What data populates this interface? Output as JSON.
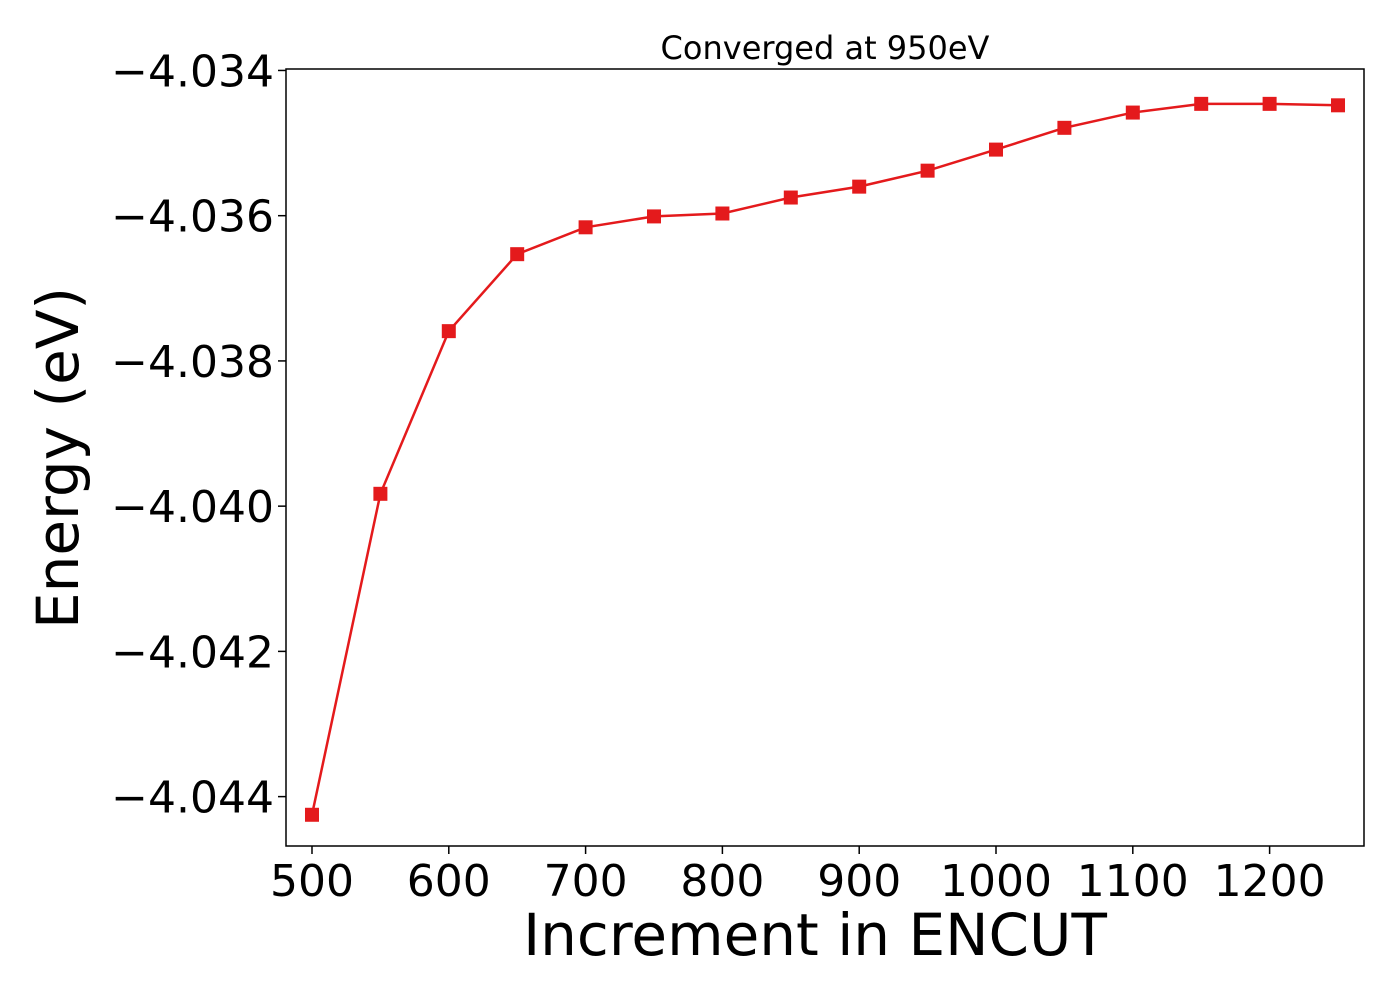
{
  "chart_data": {
    "type": "line",
    "title": "Converged at 950eV",
    "xlabel": "Increment in ENCUT",
    "ylabel": "Energy (eV)",
    "xlim": [
      481,
      1269
    ],
    "ylim": [
      -4.04468,
      -4.03398
    ],
    "xticks": [
      500,
      600,
      700,
      800,
      900,
      1000,
      1100,
      1200
    ],
    "xtick_labels": [
      "500",
      "600",
      "700",
      "800",
      "900",
      "1000",
      "1100",
      "1200"
    ],
    "yticks": [
      -4.034,
      -4.036,
      -4.038,
      -4.04,
      -4.042,
      -4.044
    ],
    "ytick_labels": [
      "−4.034",
      "−4.036",
      "−4.038",
      "−4.040",
      "−4.042",
      "−4.044"
    ],
    "grid": false,
    "marker": "square",
    "series": [
      {
        "color": "#e41a1c",
        "x": [
          500,
          550,
          600,
          650,
          700,
          750,
          800,
          850,
          900,
          950,
          1000,
          1050,
          1100,
          1150,
          1200,
          1250
        ],
        "y": [
          -4.04425,
          -4.03983,
          -4.03759,
          -4.03653,
          -4.03616,
          -4.03601,
          -4.03597,
          -4.03575,
          -4.0356,
          -4.03538,
          -4.03509,
          -4.03479,
          -4.03458,
          -4.03446,
          -4.03446,
          -4.03448
        ]
      }
    ]
  }
}
